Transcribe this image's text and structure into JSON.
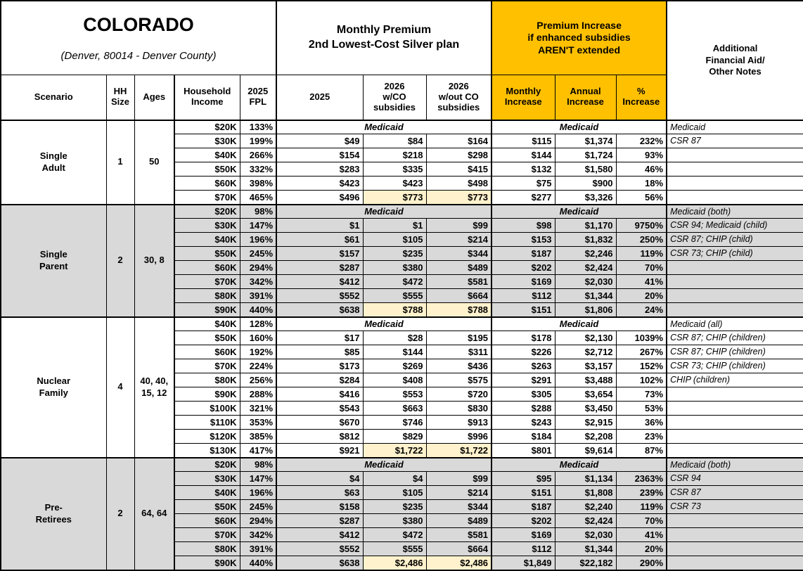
{
  "title": {
    "state": "COLORADO",
    "subtitle": "(Denver, 80014 - Denver County)"
  },
  "groups": {
    "premium": "Monthly Premium\n2nd Lowest-Cost Silver plan",
    "increase": "Premium Increase\nif enhanced subsidies\nAREN'T extended",
    "notes": "Additional\nFinancial Aid/\nOther Notes"
  },
  "columns": {
    "scenario": "Scenario",
    "hh_size": "HH\nSize",
    "ages": "Ages",
    "household_income": "Household\nIncome",
    "fpl": "2025\nFPL",
    "p2025": "2025",
    "p2026_with": "2026\nw/CO\nsubsidies",
    "p2026_without": "2026\nw/out CO\nsubsidies",
    "monthly_increase": "Monthly\nIncrease",
    "annual_increase": "Annual\nIncrease",
    "pct_increase": "%\nIncrease"
  },
  "labels": {
    "medicaid": "Medicaid"
  },
  "colors": {
    "accent_orange": "#FFC000",
    "highlight_yellow": "#FFF2CC",
    "shaded_gray": "#D9D9D9"
  },
  "sections": [
    {
      "scenario": "Single\nAdult",
      "hh_size": "1",
      "ages": "50",
      "shaded": false,
      "rows": [
        {
          "income": "$20K",
          "fpl": "133%",
          "medicaid": true,
          "note": "Medicaid"
        },
        {
          "income": "$30K",
          "fpl": "199%",
          "p2025": "$49",
          "p2026_w": "$84",
          "p2026_wo": "$164",
          "inc_m": "$115",
          "inc_a": "$1,374",
          "inc_p": "232%",
          "note": "CSR 87"
        },
        {
          "income": "$40K",
          "fpl": "266%",
          "p2025": "$154",
          "p2026_w": "$218",
          "p2026_wo": "$298",
          "inc_m": "$144",
          "inc_a": "$1,724",
          "inc_p": "93%",
          "note": ""
        },
        {
          "income": "$50K",
          "fpl": "332%",
          "p2025": "$283",
          "p2026_w": "$335",
          "p2026_wo": "$415",
          "inc_m": "$132",
          "inc_a": "$1,580",
          "inc_p": "46%",
          "note": ""
        },
        {
          "income": "$60K",
          "fpl": "398%",
          "p2025": "$423",
          "p2026_w": "$423",
          "p2026_wo": "$498",
          "inc_m": "$75",
          "inc_a": "$900",
          "inc_p": "18%",
          "note": ""
        },
        {
          "income": "$70K",
          "fpl": "465%",
          "p2025": "$496",
          "p2026_w": "$773",
          "p2026_wo": "$773",
          "highlight": true,
          "inc_m": "$277",
          "inc_a": "$3,326",
          "inc_p": "56%",
          "note": ""
        }
      ]
    },
    {
      "scenario": "Single\nParent",
      "hh_size": "2",
      "ages": "30, 8",
      "shaded": true,
      "rows": [
        {
          "income": "$20K",
          "fpl": "98%",
          "medicaid": true,
          "note": "Medicaid (both)"
        },
        {
          "income": "$30K",
          "fpl": "147%",
          "p2025": "$1",
          "p2026_w": "$1",
          "p2026_wo": "$99",
          "inc_m": "$98",
          "inc_a": "$1,170",
          "inc_p": "9750%",
          "note": "CSR 94; Medicaid (child)"
        },
        {
          "income": "$40K",
          "fpl": "196%",
          "p2025": "$61",
          "p2026_w": "$105",
          "p2026_wo": "$214",
          "inc_m": "$153",
          "inc_a": "$1,832",
          "inc_p": "250%",
          "note": "CSR 87; CHIP (child)"
        },
        {
          "income": "$50K",
          "fpl": "245%",
          "p2025": "$157",
          "p2026_w": "$235",
          "p2026_wo": "$344",
          "inc_m": "$187",
          "inc_a": "$2,246",
          "inc_p": "119%",
          "note": "CSR 73; CHIP (child)"
        },
        {
          "income": "$60K",
          "fpl": "294%",
          "p2025": "$287",
          "p2026_w": "$380",
          "p2026_wo": "$489",
          "inc_m": "$202",
          "inc_a": "$2,424",
          "inc_p": "70%",
          "note": ""
        },
        {
          "income": "$70K",
          "fpl": "342%",
          "p2025": "$412",
          "p2026_w": "$472",
          "p2026_wo": "$581",
          "inc_m": "$169",
          "inc_a": "$2,030",
          "inc_p": "41%",
          "note": ""
        },
        {
          "income": "$80K",
          "fpl": "391%",
          "p2025": "$552",
          "p2026_w": "$555",
          "p2026_wo": "$664",
          "inc_m": "$112",
          "inc_a": "$1,344",
          "inc_p": "20%",
          "note": ""
        },
        {
          "income": "$90K",
          "fpl": "440%",
          "p2025": "$638",
          "p2026_w": "$788",
          "p2026_wo": "$788",
          "highlight": true,
          "inc_m": "$151",
          "inc_a": "$1,806",
          "inc_p": "24%",
          "note": ""
        }
      ]
    },
    {
      "scenario": "Nuclear\nFamily",
      "hh_size": "4",
      "ages": "40, 40,\n15, 12",
      "shaded": false,
      "rows": [
        {
          "income": "$40K",
          "fpl": "128%",
          "medicaid": true,
          "note": "Medicaid (all)"
        },
        {
          "income": "$50K",
          "fpl": "160%",
          "p2025": "$17",
          "p2026_w": "$28",
          "p2026_wo": "$195",
          "inc_m": "$178",
          "inc_a": "$2,130",
          "inc_p": "1039%",
          "note": "CSR 87; CHIP (children)"
        },
        {
          "income": "$60K",
          "fpl": "192%",
          "p2025": "$85",
          "p2026_w": "$144",
          "p2026_wo": "$311",
          "inc_m": "$226",
          "inc_a": "$2,712",
          "inc_p": "267%",
          "note": "CSR 87; CHIP (children)"
        },
        {
          "income": "$70K",
          "fpl": "224%",
          "p2025": "$173",
          "p2026_w": "$269",
          "p2026_wo": "$436",
          "inc_m": "$263",
          "inc_a": "$3,157",
          "inc_p": "152%",
          "note": "CSR 73; CHIP (children)"
        },
        {
          "income": "$80K",
          "fpl": "256%",
          "p2025": "$284",
          "p2026_w": "$408",
          "p2026_wo": "$575",
          "inc_m": "$291",
          "inc_a": "$3,488",
          "inc_p": "102%",
          "note": "CHIP (children)"
        },
        {
          "income": "$90K",
          "fpl": "288%",
          "p2025": "$416",
          "p2026_w": "$553",
          "p2026_wo": "$720",
          "inc_m": "$305",
          "inc_a": "$3,654",
          "inc_p": "73%",
          "note": ""
        },
        {
          "income": "$100K",
          "fpl": "321%",
          "p2025": "$543",
          "p2026_w": "$663",
          "p2026_wo": "$830",
          "inc_m": "$288",
          "inc_a": "$3,450",
          "inc_p": "53%",
          "note": ""
        },
        {
          "income": "$110K",
          "fpl": "353%",
          "p2025": "$670",
          "p2026_w": "$746",
          "p2026_wo": "$913",
          "inc_m": "$243",
          "inc_a": "$2,915",
          "inc_p": "36%",
          "note": ""
        },
        {
          "income": "$120K",
          "fpl": "385%",
          "p2025": "$812",
          "p2026_w": "$829",
          "p2026_wo": "$996",
          "inc_m": "$184",
          "inc_a": "$2,208",
          "inc_p": "23%",
          "note": ""
        },
        {
          "income": "$130K",
          "fpl": "417%",
          "p2025": "$921",
          "p2026_w": "$1,722",
          "p2026_wo": "$1,722",
          "highlight": true,
          "inc_m": "$801",
          "inc_a": "$9,614",
          "inc_p": "87%",
          "note": ""
        }
      ]
    },
    {
      "scenario": "Pre-\nRetirees",
      "hh_size": "2",
      "ages": "64, 64",
      "shaded": true,
      "rows": [
        {
          "income": "$20K",
          "fpl": "98%",
          "medicaid": true,
          "note": "Medicaid (both)"
        },
        {
          "income": "$30K",
          "fpl": "147%",
          "p2025": "$4",
          "p2026_w": "$4",
          "p2026_wo": "$99",
          "inc_m": "$95",
          "inc_a": "$1,134",
          "inc_p": "2363%",
          "note": "CSR 94"
        },
        {
          "income": "$40K",
          "fpl": "196%",
          "p2025": "$63",
          "p2026_w": "$105",
          "p2026_wo": "$214",
          "inc_m": "$151",
          "inc_a": "$1,808",
          "inc_p": "239%",
          "note": "CSR 87"
        },
        {
          "income": "$50K",
          "fpl": "245%",
          "p2025": "$158",
          "p2026_w": "$235",
          "p2026_wo": "$344",
          "inc_m": "$187",
          "inc_a": "$2,240",
          "inc_p": "119%",
          "note": "CSR 73"
        },
        {
          "income": "$60K",
          "fpl": "294%",
          "p2025": "$287",
          "p2026_w": "$380",
          "p2026_wo": "$489",
          "inc_m": "$202",
          "inc_a": "$2,424",
          "inc_p": "70%",
          "note": ""
        },
        {
          "income": "$70K",
          "fpl": "342%",
          "p2025": "$412",
          "p2026_w": "$472",
          "p2026_wo": "$581",
          "inc_m": "$169",
          "inc_a": "$2,030",
          "inc_p": "41%",
          "note": ""
        },
        {
          "income": "$80K",
          "fpl": "391%",
          "p2025": "$552",
          "p2026_w": "$555",
          "p2026_wo": "$664",
          "inc_m": "$112",
          "inc_a": "$1,344",
          "inc_p": "20%",
          "note": ""
        },
        {
          "income": "$90K",
          "fpl": "440%",
          "p2025": "$638",
          "p2026_w": "$2,486",
          "p2026_wo": "$2,486",
          "highlight": true,
          "inc_m": "$1,849",
          "inc_a": "$22,182",
          "inc_p": "290%",
          "note": ""
        }
      ]
    }
  ]
}
